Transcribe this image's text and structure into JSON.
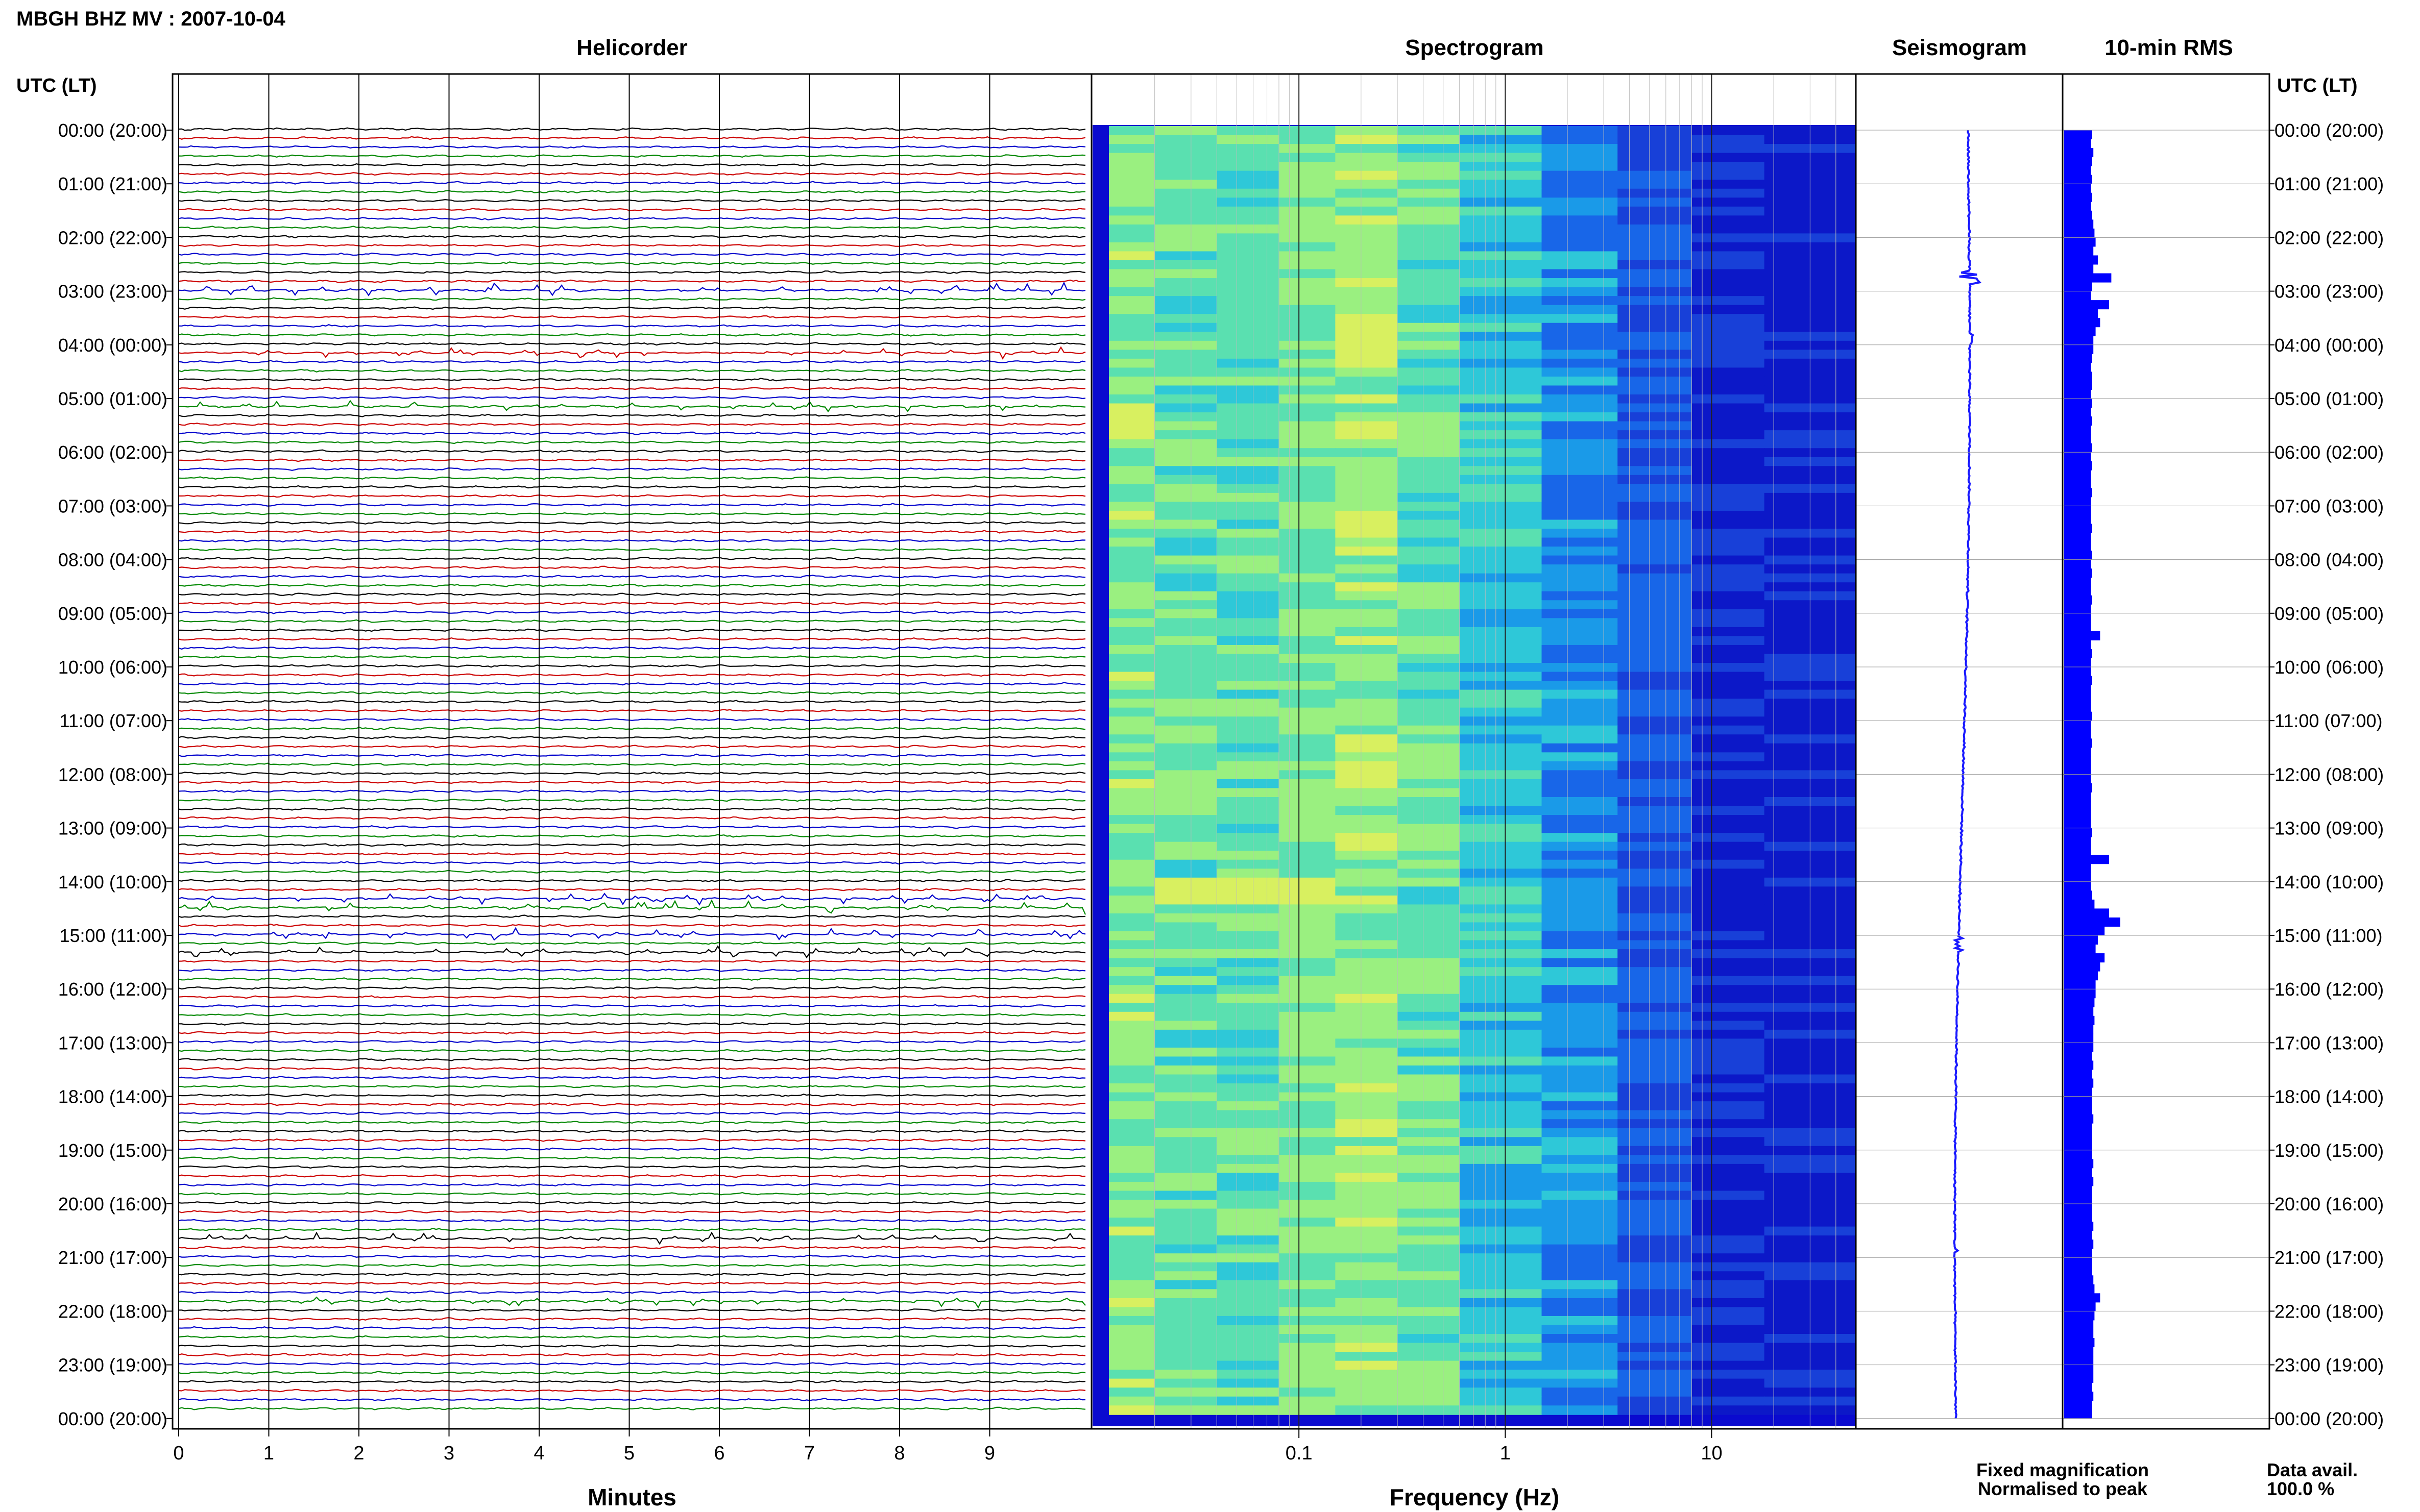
{
  "title": "MBGH BHZ MV : 2007-10-04",
  "panels": {
    "helicorder": "Helicorder",
    "spectrogram": "Spectrogram",
    "seismogram": "Seismogram",
    "rms": "10-min RMS"
  },
  "axis": {
    "time_header_left": "UTC (LT)",
    "time_header_right": "UTC (LT)",
    "minutes_label": "Minutes",
    "frequency_label": "Frequency (Hz)"
  },
  "legend": {
    "fixed": "Fixed magnification",
    "normalised": "Normalised to peak",
    "fixed_color": "#1a1aff",
    "normalised_color": "#ff1a1a",
    "data_avail_label": "Data avail.",
    "data_avail_value": "100.0 %"
  },
  "chart_data": {
    "type": "helicorder_spectrogram_rms",
    "time_ticks": [
      "00:00 (20:00)",
      "01:00 (21:00)",
      "02:00 (22:00)",
      "03:00 (23:00)",
      "04:00 (00:00)",
      "05:00 (01:00)",
      "06:00 (02:00)",
      "07:00 (03:00)",
      "08:00 (04:00)",
      "09:00 (05:00)",
      "10:00 (06:00)",
      "11:00 (07:00)",
      "12:00 (08:00)",
      "13:00 (09:00)",
      "14:00 (10:00)",
      "15:00 (11:00)",
      "16:00 (12:00)",
      "17:00 (13:00)",
      "18:00 (14:00)",
      "19:00 (15:00)",
      "20:00 (16:00)",
      "21:00 (17:00)",
      "22:00 (18:00)",
      "23:00 (19:00)",
      "00:00 (20:00)"
    ],
    "minute_ticks": [
      "0",
      "1",
      "2",
      "3",
      "4",
      "5",
      "6",
      "7",
      "8",
      "9"
    ],
    "minute_range": [
      0,
      10
    ],
    "frequency_ticks": [
      "0.1",
      "1",
      "10"
    ],
    "frequency_range_hz": [
      0.01,
      50
    ],
    "trace_colors": [
      "#000000",
      "#cc0000",
      "#0000cc",
      "#008800"
    ],
    "traces_per_hour": 6,
    "rms_color": "#0000ff",
    "rms_10min": [
      0.25,
      0.24,
      0.26,
      0.25,
      0.24,
      0.25,
      0.24,
      0.25,
      0.24,
      0.25,
      0.26,
      0.27,
      0.28,
      0.26,
      0.3,
      0.26,
      0.42,
      0.25,
      0.24,
      0.4,
      0.3,
      0.32,
      0.28,
      0.26,
      0.26,
      0.25,
      0.24,
      0.25,
      0.25,
      0.24,
      0.25,
      0.24,
      0.25,
      0.24,
      0.24,
      0.25,
      0.24,
      0.25,
      0.24,
      0.24,
      0.25,
      0.24,
      0.24,
      0.24,
      0.25,
      0.24,
      0.24,
      0.25,
      0.24,
      0.25,
      0.24,
      0.24,
      0.25,
      0.24,
      0.24,
      0.24,
      0.32,
      0.24,
      0.25,
      0.24,
      0.24,
      0.25,
      0.24,
      0.24,
      0.24,
      0.25,
      0.24,
      0.24,
      0.25,
      0.24,
      0.24,
      0.24,
      0.24,
      0.25,
      0.24,
      0.24,
      0.24,
      0.24,
      0.25,
      0.24,
      0.24,
      0.4,
      0.24,
      0.24,
      0.24,
      0.25,
      0.27,
      0.4,
      0.5,
      0.36,
      0.3,
      0.28,
      0.36,
      0.32,
      0.3,
      0.28,
      0.28,
      0.27,
      0.26,
      0.27,
      0.26,
      0.26,
      0.26,
      0.25,
      0.26,
      0.25,
      0.26,
      0.25,
      0.25,
      0.25,
      0.26,
      0.25,
      0.25,
      0.25,
      0.25,
      0.26,
      0.25,
      0.26,
      0.25,
      0.25,
      0.25,
      0.25,
      0.26,
      0.25,
      0.26,
      0.25,
      0.25,
      0.25,
      0.26,
      0.27,
      0.32,
      0.28,
      0.27,
      0.26,
      0.26,
      0.27,
      0.26,
      0.26,
      0.26,
      0.26,
      0.25,
      0.26,
      0.25,
      0.25
    ]
  }
}
